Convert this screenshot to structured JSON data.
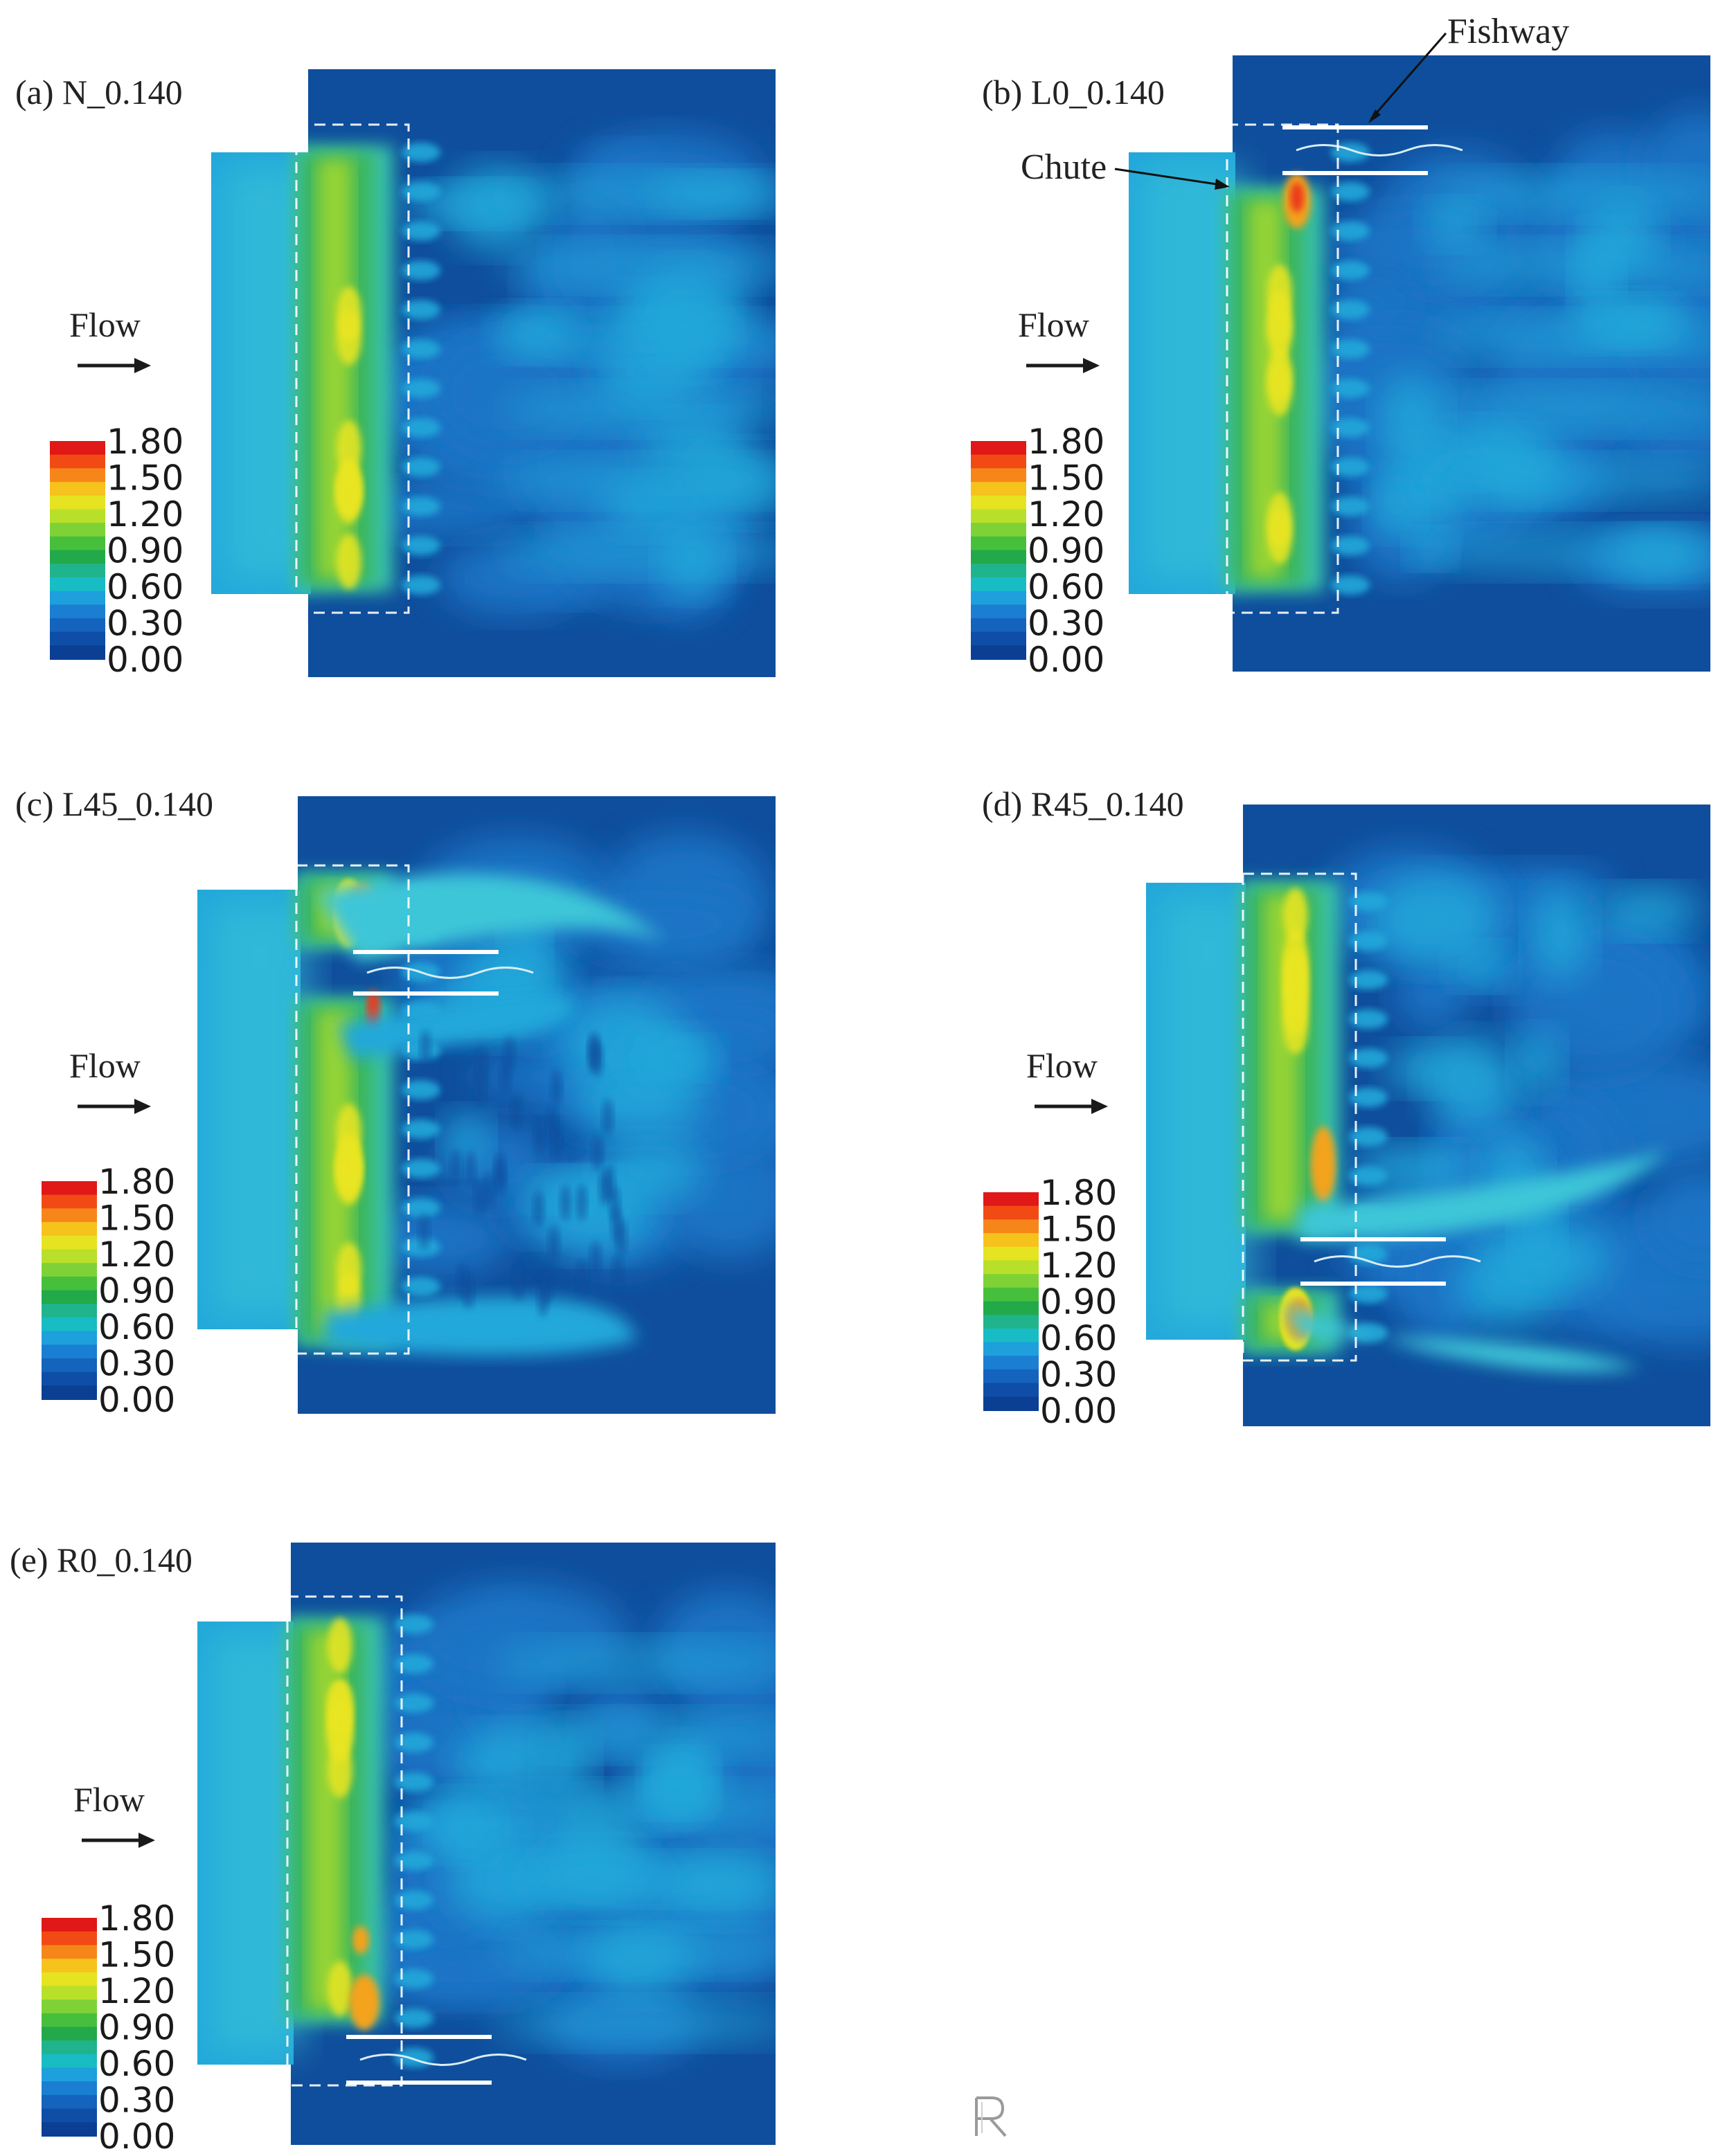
{
  "figure": {
    "panels": [
      {
        "id": "a",
        "label": "(a) N_0.140",
        "fishway": "none"
      },
      {
        "id": "b",
        "label": "(b) L0_0.140",
        "fishway": "top"
      },
      {
        "id": "c",
        "label": "(c) L45_0.140",
        "fishway": "upper"
      },
      {
        "id": "d",
        "label": "(d) R45_0.140",
        "fishway": "lower"
      },
      {
        "id": "e",
        "label": "(e) R0_0.140",
        "fishway": "bottom"
      }
    ],
    "flow_label": "Flow",
    "annotations": {
      "fishway": "Fishway",
      "chute": "Chute"
    },
    "colorbar": {
      "ticks": [
        "1.80",
        "1.50",
        "1.20",
        "0.90",
        "0.60",
        "0.30",
        "0.00"
      ],
      "colors": [
        "#e01818",
        "#f24a14",
        "#f7861a",
        "#f6c21c",
        "#e6e320",
        "#b8e02a",
        "#7fd236",
        "#46c03c",
        "#22a94a",
        "#1fb48c",
        "#18bcc4",
        "#1ea0dc",
        "#1a7ed2",
        "#1463bc",
        "#0e4ea6",
        "#0a3f94"
      ]
    },
    "field_colors": {
      "deep": "#0f4e9c",
      "medium": "#1b74c6",
      "light": "#22a8da",
      "cyan": "#3cc6d8",
      "teal": "#39c1a8",
      "green": "#3db65a",
      "yellow_green": "#9ed733",
      "yellow": "#e9e521",
      "orange": "#f3a31d",
      "red": "#ec3a1a"
    }
  }
}
